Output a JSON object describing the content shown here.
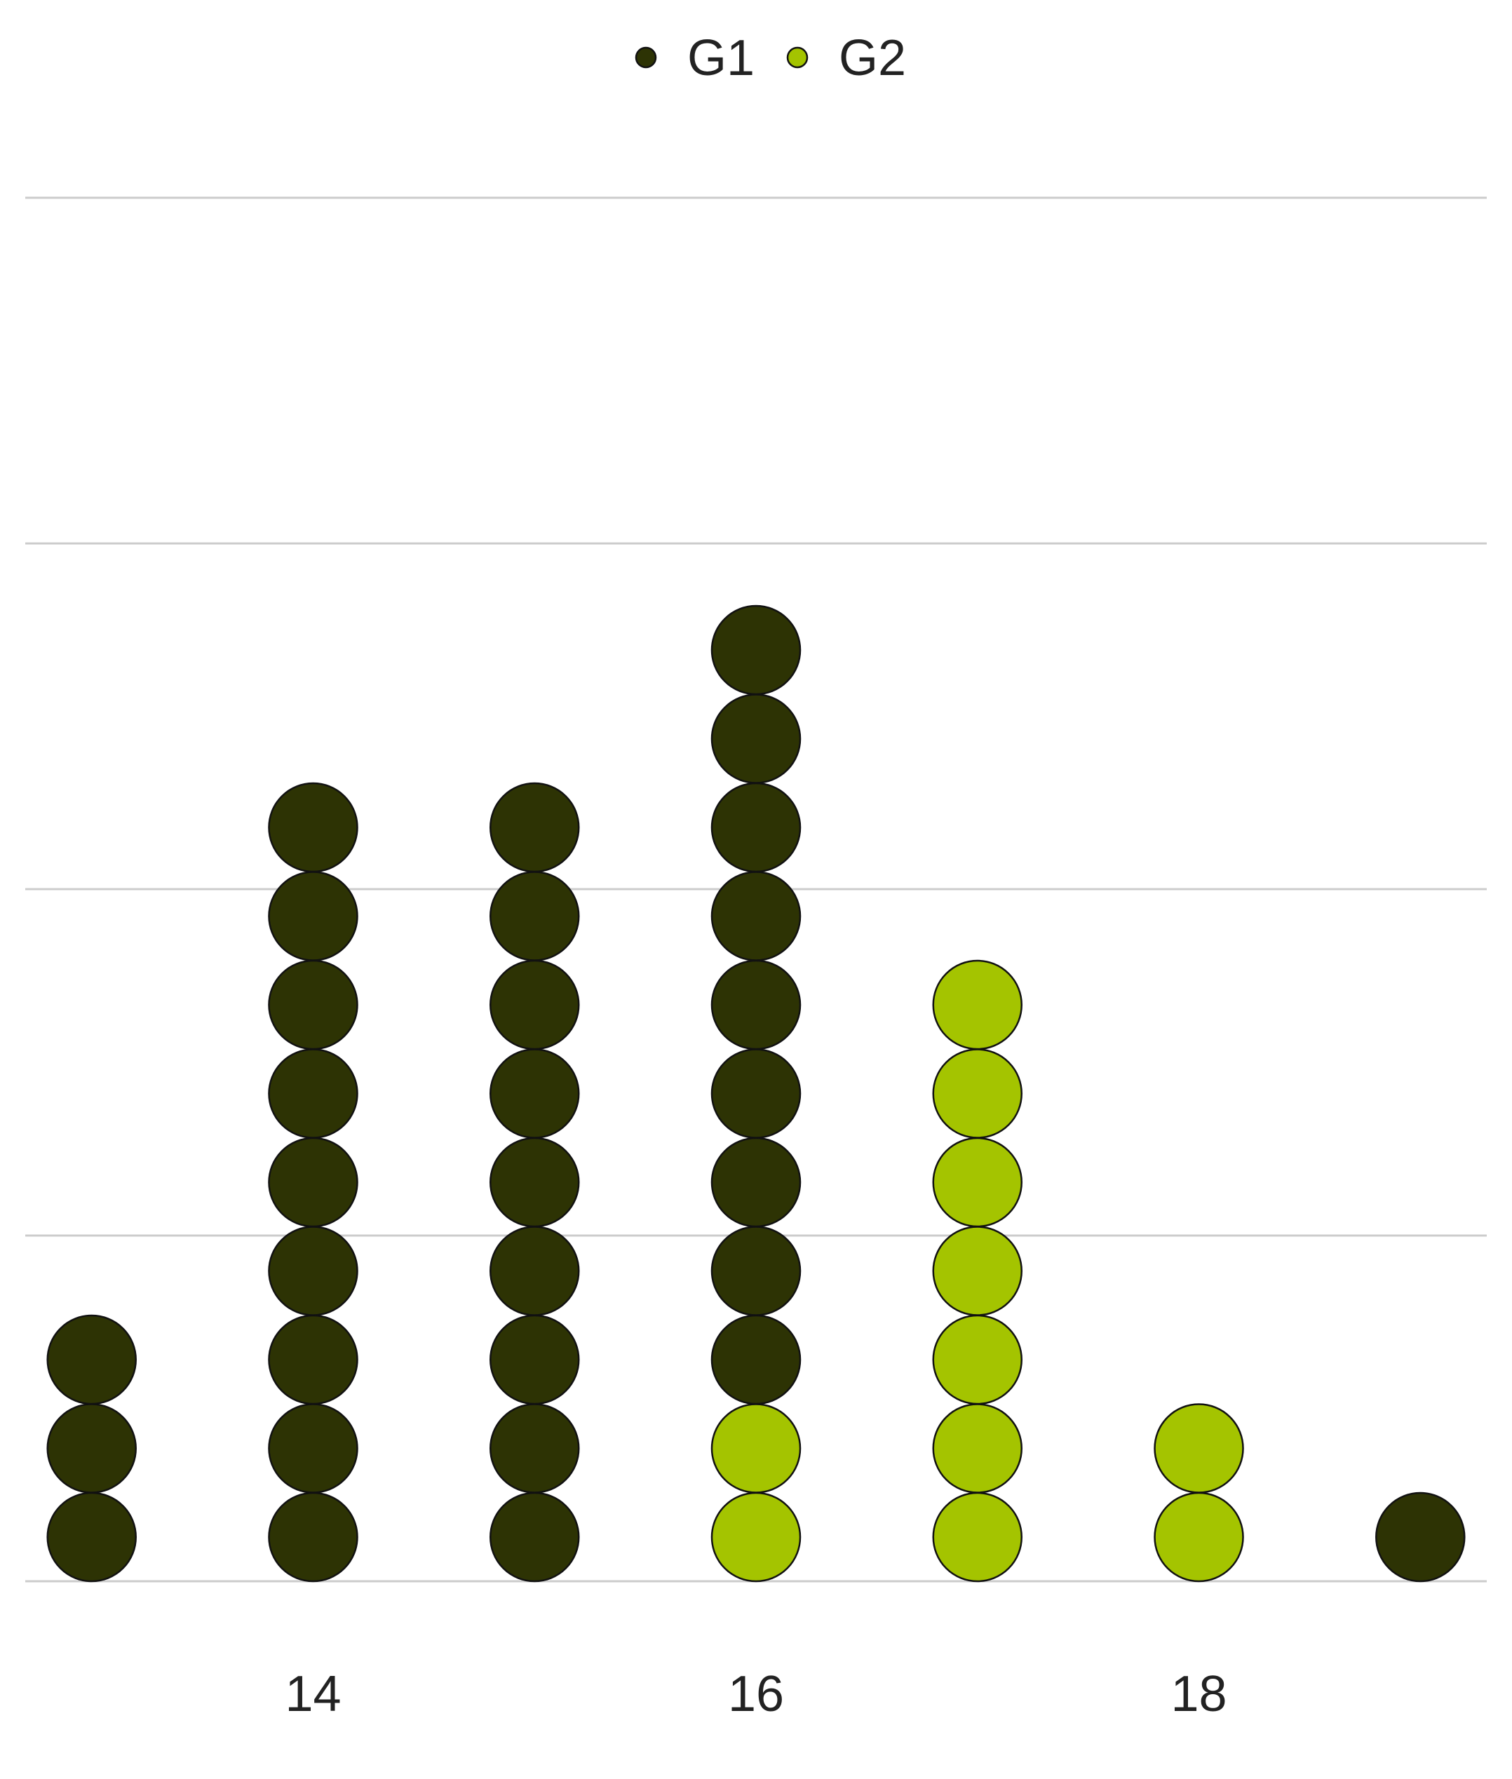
{
  "chart_data": {
    "type": "dot",
    "title": "",
    "xlabel": "",
    "ylabel": "",
    "x_ticks": [
      "14",
      "16",
      "18"
    ],
    "x_tick_values": [
      14,
      16,
      18
    ],
    "xlim": [
      12.7,
      19.3
    ],
    "grid": "horizontal",
    "legend_position": "top",
    "series": [
      {
        "name": "G1",
        "color": "#2d3304",
        "stacks": [
          {
            "x": 13,
            "count": 3
          },
          {
            "x": 14,
            "count": 9
          },
          {
            "x": 15,
            "count": 9
          },
          {
            "x": 16,
            "count": 9
          },
          {
            "x": 19,
            "count": 1
          }
        ]
      },
      {
        "name": "G2",
        "color": "#a4c400",
        "stacks": [
          {
            "x": 16,
            "count": 2
          },
          {
            "x": 17,
            "count": 7
          },
          {
            "x": 18,
            "count": 2
          }
        ]
      }
    ]
  }
}
